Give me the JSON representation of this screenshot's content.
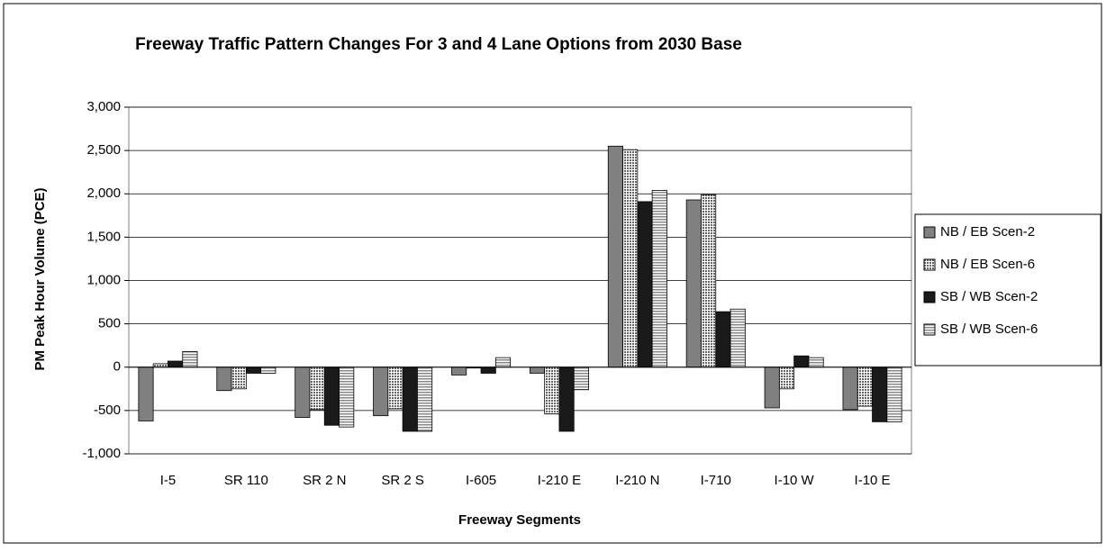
{
  "chart_data": {
    "type": "bar",
    "title": "Freeway Traffic Pattern Changes For 3 and 4 Lane Options from 2030 Base",
    "x_label": "Freeway Segments",
    "y_label": "PM Peak Hour Volume (PCE)",
    "categories": [
      "I-5",
      "SR 110",
      "SR 2 N",
      "SR 2 S",
      "I-605",
      "I-210 E",
      "I-210 N",
      "I-710",
      "I-10 W",
      "I-10 E"
    ],
    "series": [
      {
        "name": "NB / EB Scen-2",
        "color": "#808080",
        "pattern": "solid",
        "values": [
          -620,
          -270,
          -580,
          -560,
          -90,
          -70,
          2550,
          1930,
          -470,
          -490
        ]
      },
      {
        "name": "NB / EB Scen-6",
        "color": "#808080",
        "pattern": "dots",
        "values": [
          40,
          -250,
          -490,
          -480,
          -10,
          -540,
          2510,
          1990,
          -250,
          -450
        ]
      },
      {
        "name": "SB / WB Scen-2",
        "color": "#1a1a1a",
        "pattern": "solid",
        "values": [
          70,
          -70,
          -670,
          -740,
          -70,
          -740,
          1910,
          640,
          130,
          -630
        ]
      },
      {
        "name": "SB / WB Scen-6",
        "color": "#808080",
        "pattern": "hstripes",
        "values": [
          180,
          -70,
          -690,
          -740,
          110,
          -260,
          2040,
          670,
          110,
          -630
        ]
      }
    ],
    "ylim": [
      -1000,
      3000
    ],
    "yticks": [
      {
        "value": -1000,
        "label": "-1,000"
      },
      -500,
      0,
      500,
      {
        "value": 1000,
        "label": "1,000"
      },
      {
        "value": 1500,
        "label": "1,500"
      },
      {
        "value": 2000,
        "label": "2,000"
      },
      {
        "value": 2500,
        "label": "2,500"
      },
      {
        "value": 3000,
        "label": "3,000"
      }
    ],
    "grid": true,
    "legend": "right"
  }
}
